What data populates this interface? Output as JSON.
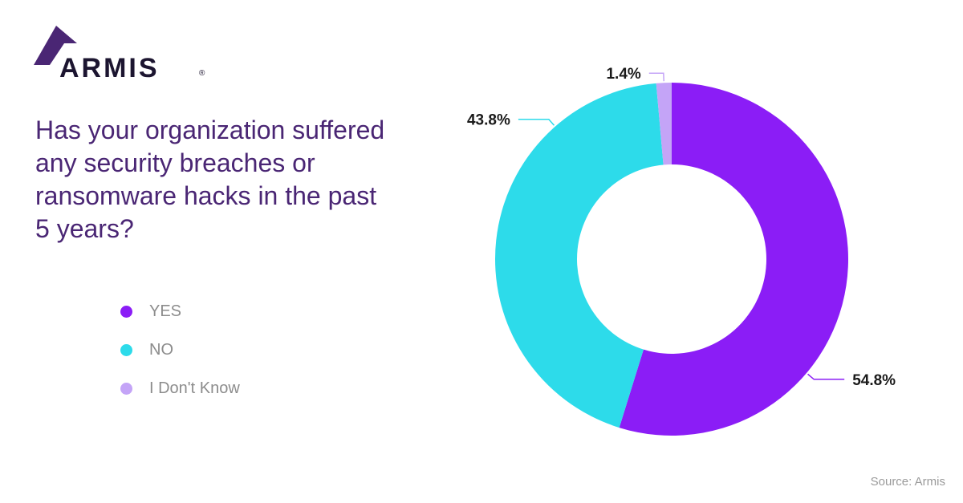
{
  "brand": {
    "name": "ARMIS",
    "registered_mark": "®",
    "logo_color": "#4a2674"
  },
  "question": "Has your organization suffered any security breaches or ransomware hacks in the past 5 years?",
  "source": "Source: Armis",
  "colors": {
    "yes": "#8b1df6",
    "no": "#2ddbea",
    "dont_know": "#c4a4f7",
    "title": "#4a2674"
  },
  "chart_data": {
    "type": "pie",
    "variant": "donut",
    "categories": [
      "YES",
      "NO",
      "I Don't Know"
    ],
    "values": [
      54.8,
      43.8,
      1.4
    ],
    "labels": [
      "54.8%",
      "43.8%",
      "1.4%"
    ],
    "colors": [
      "#8b1df6",
      "#2ddbea",
      "#c4a4f7"
    ],
    "legend_position": "left"
  }
}
